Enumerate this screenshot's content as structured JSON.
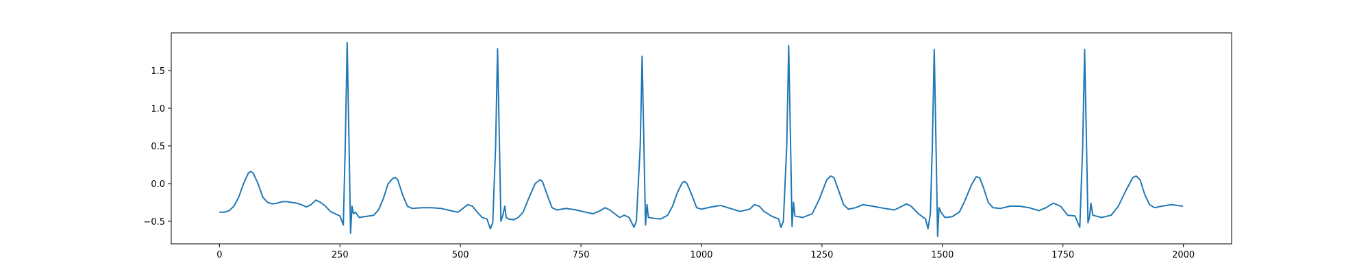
{
  "chart_data": {
    "type": "line",
    "color": "#1f77b4",
    "x": [
      0,
      10,
      20,
      30,
      40,
      50,
      60,
      65,
      70,
      80,
      90,
      100,
      110,
      120,
      130,
      140,
      150,
      160,
      170,
      180,
      190,
      200,
      210,
      220,
      230,
      240,
      250,
      257,
      261,
      265,
      269,
      272,
      275,
      278,
      282,
      290,
      300,
      320,
      330,
      340,
      350,
      360,
      365,
      370,
      380,
      390,
      400,
      420,
      440,
      460,
      480,
      495,
      505,
      515,
      525,
      535,
      545,
      555,
      562,
      567,
      573,
      577,
      581,
      584,
      588,
      592,
      595,
      600,
      610,
      620,
      630,
      640,
      655,
      665,
      670,
      680,
      690,
      700,
      720,
      740,
      760,
      775,
      790,
      800,
      810,
      820,
      830,
      840,
      850,
      860,
      865,
      873,
      877,
      881,
      884,
      887,
      890,
      900,
      915,
      930,
      940,
      950,
      960,
      965,
      970,
      980,
      990,
      1000,
      1020,
      1040,
      1060,
      1080,
      1100,
      1110,
      1120,
      1130,
      1145,
      1160,
      1165,
      1170,
      1177,
      1181,
      1185,
      1188,
      1191,
      1194,
      1210,
      1230,
      1245,
      1260,
      1268,
      1275,
      1285,
      1295,
      1305,
      1320,
      1335,
      1355,
      1380,
      1400,
      1410,
      1425,
      1435,
      1450,
      1465,
      1470,
      1475,
      1479,
      1483,
      1487,
      1490,
      1493,
      1497,
      1505,
      1520,
      1535,
      1545,
      1560,
      1570,
      1577,
      1585,
      1595,
      1605,
      1620,
      1640,
      1660,
      1680,
      1700,
      1715,
      1730,
      1745,
      1760,
      1775,
      1785,
      1791,
      1795,
      1799,
      1802,
      1805,
      1808,
      1812,
      1830,
      1850,
      1865,
      1880,
      1895,
      1902,
      1910,
      1920,
      1930,
      1940,
      1955,
      1975,
      1999
    ],
    "values": [
      -0.38,
      -0.38,
      -0.36,
      -0.3,
      -0.18,
      0.0,
      0.14,
      0.16,
      0.14,
      0.0,
      -0.18,
      -0.25,
      -0.27,
      -0.26,
      -0.24,
      -0.24,
      -0.25,
      -0.26,
      -0.28,
      -0.31,
      -0.28,
      -0.22,
      -0.25,
      -0.3,
      -0.37,
      -0.4,
      -0.43,
      -0.55,
      0.5,
      1.87,
      0.5,
      -0.66,
      -0.3,
      -0.4,
      -0.38,
      -0.45,
      -0.44,
      -0.42,
      -0.35,
      -0.2,
      0.0,
      0.07,
      0.08,
      0.05,
      -0.15,
      -0.3,
      -0.33,
      -0.32,
      -0.32,
      -0.33,
      -0.36,
      -0.38,
      -0.33,
      -0.28,
      -0.3,
      -0.38,
      -0.45,
      -0.47,
      -0.6,
      -0.52,
      0.5,
      1.79,
      0.5,
      -0.5,
      -0.42,
      -0.3,
      -0.45,
      -0.47,
      -0.48,
      -0.45,
      -0.38,
      -0.22,
      0.0,
      0.05,
      0.03,
      -0.15,
      -0.32,
      -0.35,
      -0.33,
      -0.35,
      -0.38,
      -0.4,
      -0.36,
      -0.32,
      -0.35,
      -0.4,
      -0.45,
      -0.42,
      -0.45,
      -0.58,
      -0.5,
      0.5,
      1.69,
      0.4,
      -0.55,
      -0.28,
      -0.45,
      -0.46,
      -0.47,
      -0.42,
      -0.3,
      -0.12,
      0.01,
      0.03,
      0.0,
      -0.15,
      -0.32,
      -0.34,
      -0.31,
      -0.29,
      -0.33,
      -0.37,
      -0.34,
      -0.28,
      -0.3,
      -0.37,
      -0.43,
      -0.47,
      -0.58,
      -0.5,
      0.5,
      1.83,
      0.5,
      -0.57,
      -0.25,
      -0.43,
      -0.45,
      -0.4,
      -0.2,
      0.05,
      0.1,
      0.08,
      -0.1,
      -0.28,
      -0.34,
      -0.32,
      -0.28,
      -0.3,
      -0.33,
      -0.35,
      -0.32,
      -0.27,
      -0.3,
      -0.4,
      -0.47,
      -0.6,
      -0.4,
      0.5,
      1.78,
      0.4,
      -0.7,
      -0.32,
      -0.38,
      -0.45,
      -0.44,
      -0.38,
      -0.25,
      -0.02,
      0.09,
      0.08,
      -0.05,
      -0.25,
      -0.32,
      -0.33,
      -0.3,
      -0.3,
      -0.32,
      -0.36,
      -0.32,
      -0.26,
      -0.3,
      -0.42,
      -0.43,
      -0.58,
      0.5,
      1.78,
      0.5,
      -0.52,
      -0.45,
      -0.26,
      -0.42,
      -0.45,
      -0.42,
      -0.3,
      -0.1,
      0.08,
      0.1,
      0.05,
      -0.15,
      -0.28,
      -0.32,
      -0.3,
      -0.28,
      -0.3
    ],
    "xlim": [
      -100,
      2100
    ],
    "xticks": [
      0,
      250,
      500,
      750,
      1000,
      1250,
      1500,
      1750,
      2000
    ],
    "ylim": [
      -0.8,
      2.0
    ],
    "yticks": [
      {
        "value": -0.5,
        "label": "−0.5"
      },
      {
        "value": 0,
        "label": "0.0"
      },
      0.5,
      {
        "value": 1.0,
        "label": "1.0"
      },
      1.5
    ]
  }
}
